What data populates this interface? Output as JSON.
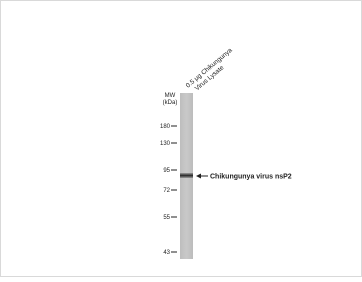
{
  "lane_label": [
    "0.5 μg Chikungunya",
    "Virus Lysate"
  ],
  "mw_title": [
    "MW",
    "(kDa)"
  ],
  "markers": [
    "180",
    "130",
    "95",
    "72",
    "55",
    "43"
  ],
  "band_label": "Chikungunya virus nsP2"
}
